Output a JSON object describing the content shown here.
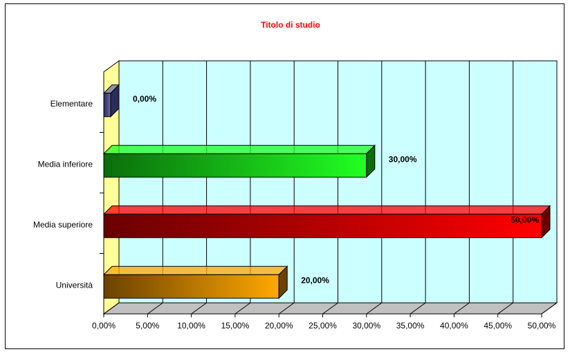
{
  "chart_data": {
    "type": "bar",
    "orientation": "horizontal",
    "style": "3d",
    "title": "Titolo di studio",
    "title_color": "#ff0000",
    "categories": [
      "Elementare",
      "Media inferiore",
      "Media superiore",
      "Università"
    ],
    "values": [
      0.0,
      30.0,
      50.0,
      20.0
    ],
    "value_labels": [
      "0,00%",
      "30,00%",
      "50,00%",
      "20,00%"
    ],
    "bar_colors": [
      [
        "#2b2b5c",
        "#6a6aa8"
      ],
      [
        "#0a6e0a",
        "#22ff22"
      ],
      [
        "#6a0000",
        "#ff0000"
      ],
      [
        "#6b4200",
        "#ffa800"
      ]
    ],
    "x_ticks": [
      "0,00%",
      "5,00%",
      "10,00%",
      "15,00%",
      "20,00%",
      "25,00%",
      "30,00%",
      "35,00%",
      "40,00%",
      "45,00%",
      "50,00%"
    ],
    "xlim": [
      0,
      50
    ],
    "grid": true,
    "legend": "none",
    "plot_background": "#ccffff",
    "side_wall_color": "#ffff99"
  }
}
